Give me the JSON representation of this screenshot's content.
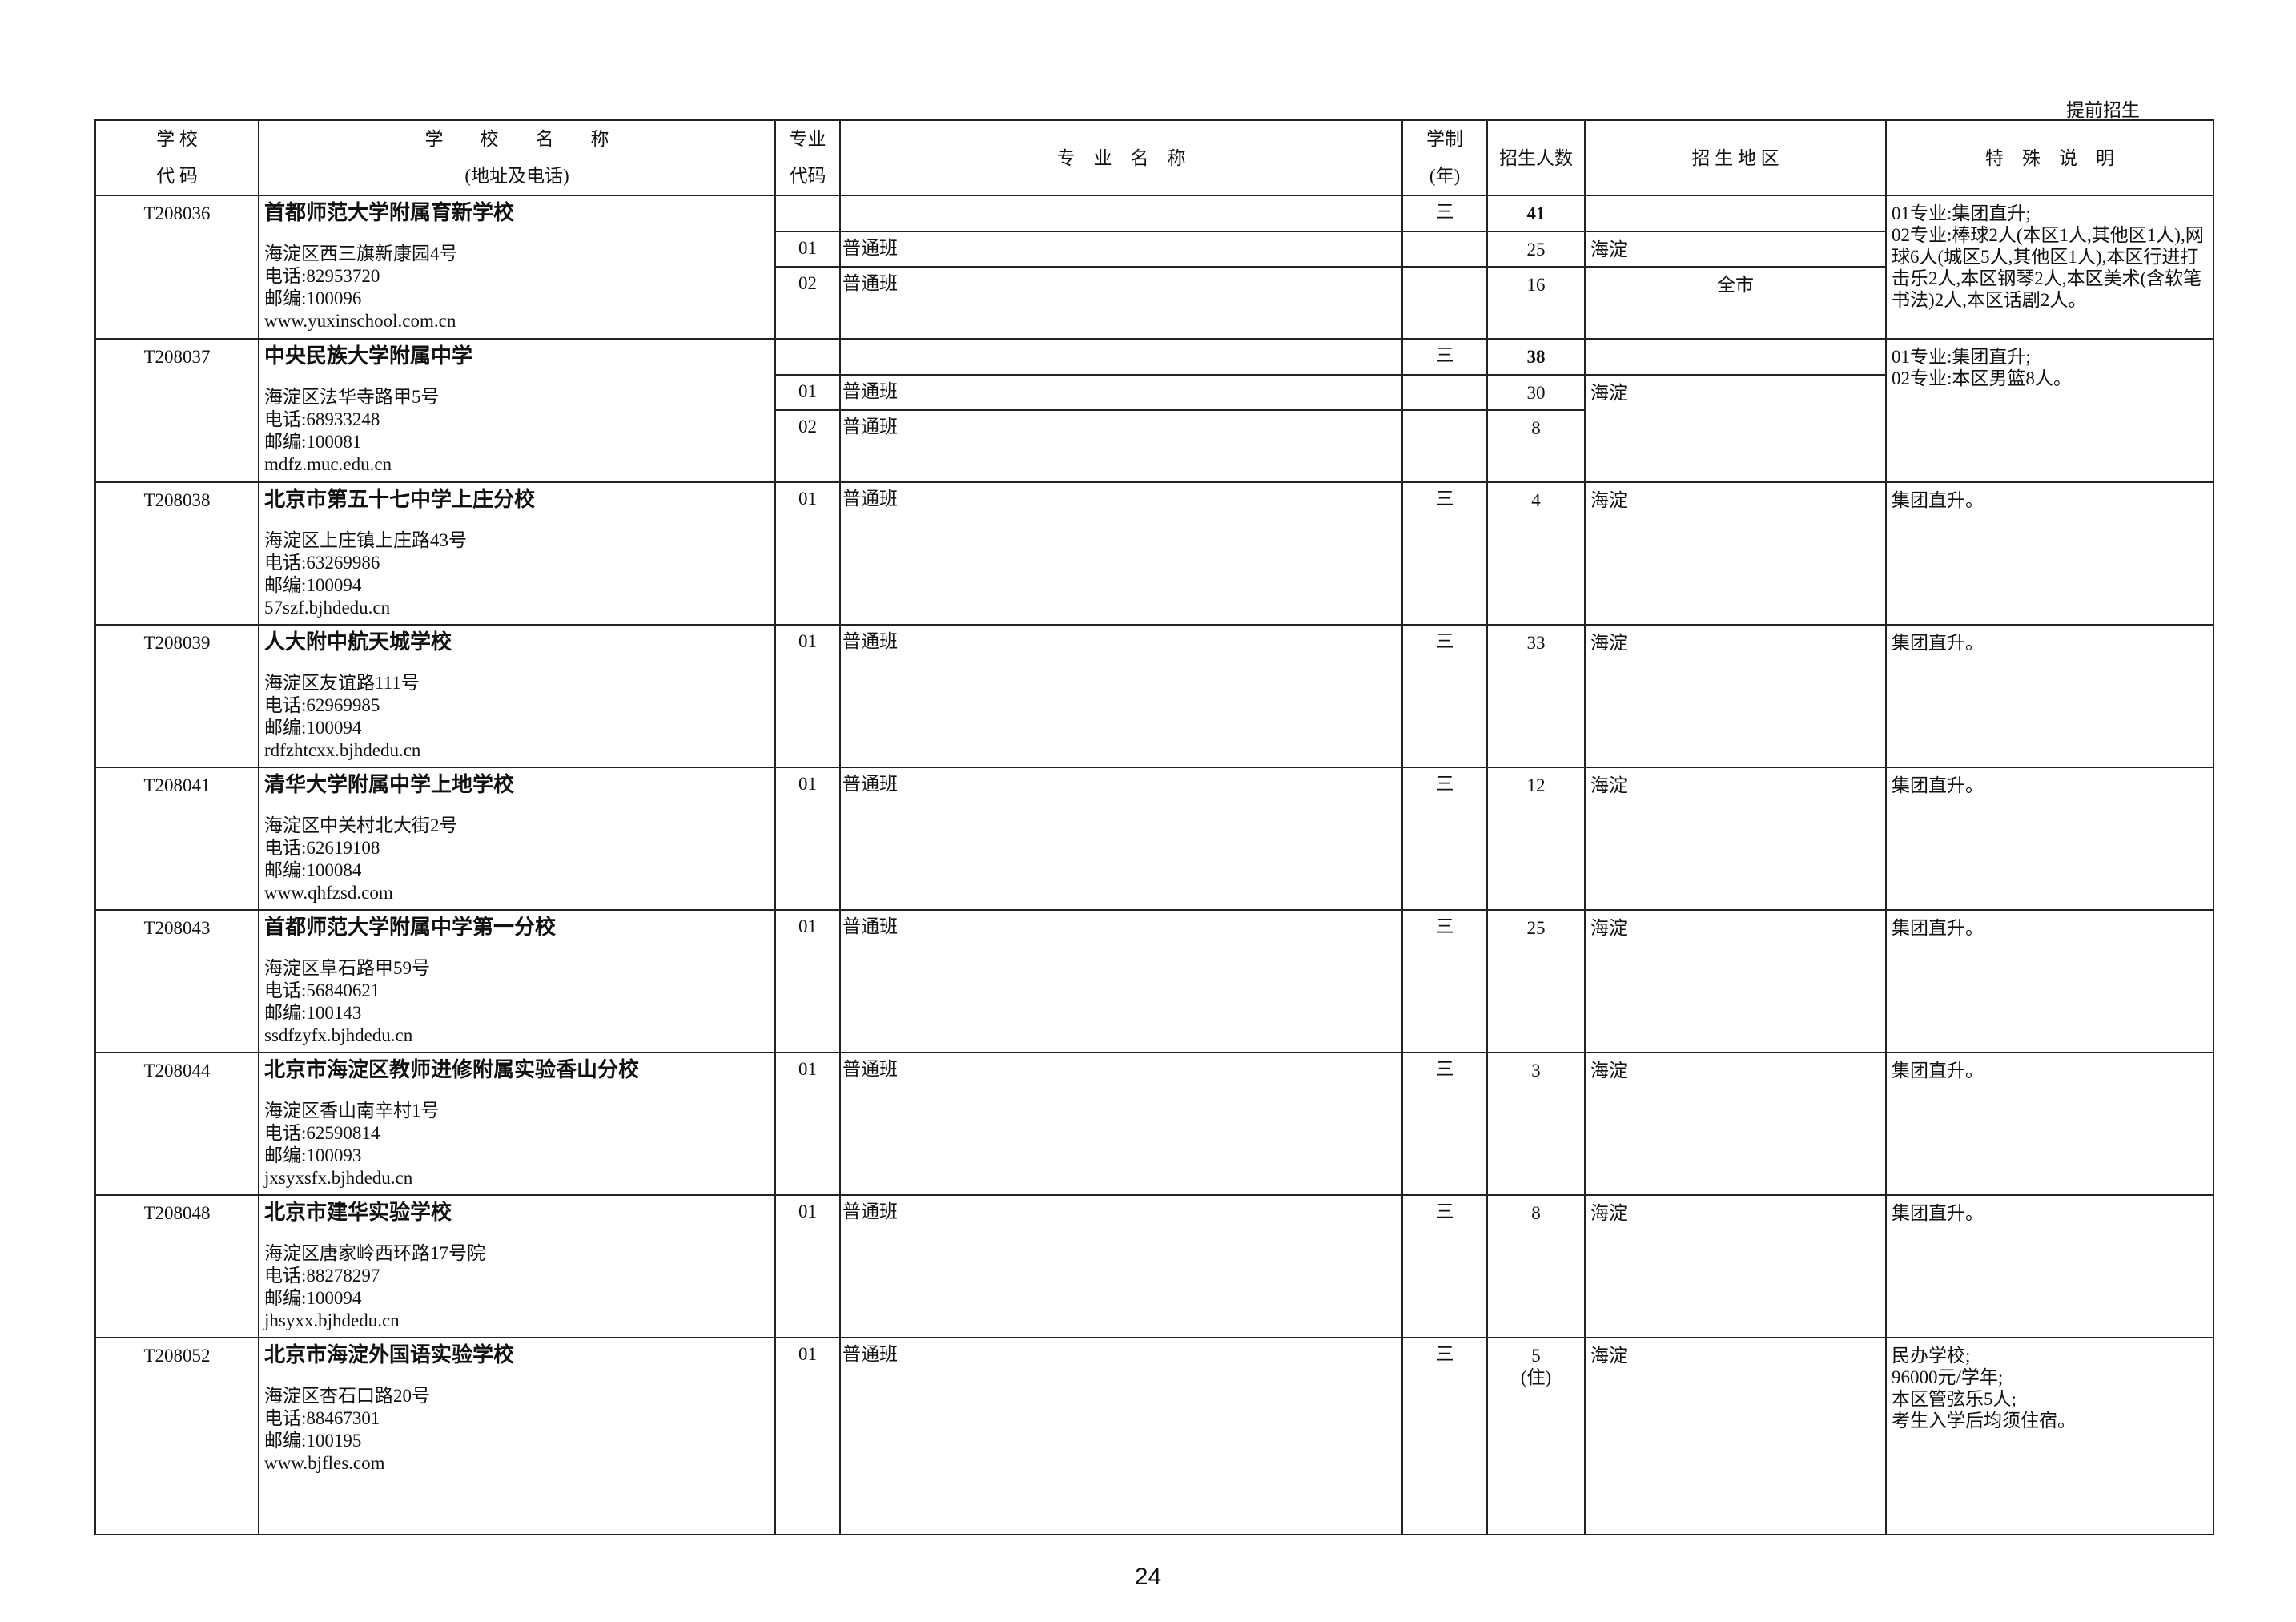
{
  "section_tag": "提前招生",
  "page_number": "24",
  "headers": {
    "school_code_1": "学 校",
    "school_code_2": "代 码",
    "school_name_1": "学　　校　　名　　称",
    "school_name_2": "(地址及电话)",
    "major_code_1": "专业",
    "major_code_2": "代码",
    "major_name": "专　业　名　称",
    "years_1": "学制",
    "years_2": "(年)",
    "enrollment": "招生人数",
    "region": "招 生 地 区",
    "notes": "特　殊　说　明"
  },
  "schools": [
    {
      "code": "T208036",
      "name": "首都师范大学附属育新学校",
      "address": "海淀区西三旗新康园4号",
      "phone": "电话:82953720",
      "postcode": "邮编:100096",
      "website": "www.yuxinschool.com.cn",
      "years": "三",
      "total": "41",
      "majors": [
        {
          "code": "01",
          "name": "普通班",
          "count": "25",
          "region": "海淀"
        },
        {
          "code": "02",
          "name": "普通班",
          "count": "16",
          "region": "全市"
        }
      ],
      "notes": "01专业:集团直升;\n02专业:棒球2人(本区1人,其他区1人),网球6人(城区5人,其他区1人),本区行进打击乐2人,本区钢琴2人,本区美术(含软笔书法)2人,本区话剧2人。"
    },
    {
      "code": "T208037",
      "name": "中央民族大学附属中学",
      "address": "海淀区法华寺路甲5号",
      "phone": "电话:68933248",
      "postcode": "邮编:100081",
      "website": "mdfz.muc.edu.cn",
      "years": "三",
      "total": "38",
      "majors": [
        {
          "code": "01",
          "name": "普通班",
          "count": "30",
          "region": "海淀"
        },
        {
          "code": "02",
          "name": "普通班",
          "count": "8"
        }
      ],
      "notes": "01专业:集团直升;\n02专业:本区男篮8人。"
    },
    {
      "code": "T208038",
      "name": "北京市第五十七中学上庄分校",
      "address": "海淀区上庄镇上庄路43号",
      "phone": "电话:63269986",
      "postcode": "邮编:100094",
      "website": "57szf.bjhdedu.cn",
      "major_code": "01",
      "major_name": "普通班",
      "years": "三",
      "count": "4",
      "region": "海淀",
      "notes": "集团直升。"
    },
    {
      "code": "T208039",
      "name": "人大附中航天城学校",
      "address": "海淀区友谊路111号",
      "phone": "电话:62969985",
      "postcode": "邮编:100094",
      "website": "rdfzhtcxx.bjhdedu.cn",
      "major_code": "01",
      "major_name": "普通班",
      "years": "三",
      "count": "33",
      "region": "海淀",
      "notes": "集团直升。"
    },
    {
      "code": "T208041",
      "name": "清华大学附属中学上地学校",
      "address": "海淀区中关村北大街2号",
      "phone": "电话:62619108",
      "postcode": "邮编:100084",
      "website": "www.qhfzsd.com",
      "major_code": "01",
      "major_name": "普通班",
      "years": "三",
      "count": "12",
      "region": "海淀",
      "notes": "集团直升。"
    },
    {
      "code": "T208043",
      "name": "首都师范大学附属中学第一分校",
      "address": "海淀区阜石路甲59号",
      "phone": "电话:56840621",
      "postcode": "邮编:100143",
      "website": "ssdfzyfx.bjhdedu.cn",
      "major_code": "01",
      "major_name": "普通班",
      "years": "三",
      "count": "25",
      "region": "海淀",
      "notes": "集团直升。"
    },
    {
      "code": "T208044",
      "name": "北京市海淀区教师进修附属实验香山分校",
      "address": "海淀区香山南辛村1号",
      "phone": "电话:62590814",
      "postcode": "邮编:100093",
      "website": "jxsyxsfx.bjhdedu.cn",
      "major_code": "01",
      "major_name": "普通班",
      "years": "三",
      "count": "3",
      "region": "海淀",
      "notes": "集团直升。"
    },
    {
      "code": "T208048",
      "name": "北京市建华实验学校",
      "address": "海淀区唐家岭西环路17号院",
      "phone": "电话:88278297",
      "postcode": "邮编:100094",
      "website": "jhsyxx.bjhdedu.cn",
      "major_code": "01",
      "major_name": "普通班",
      "years": "三",
      "count": "8",
      "region": "海淀",
      "notes": "集团直升。"
    },
    {
      "code": "T208052",
      "name": "北京市海淀外国语实验学校",
      "address": "海淀区杏石口路20号",
      "phone": "电话:88467301",
      "postcode": "邮编:100195",
      "website": "www.bjfles.com",
      "major_code": "01",
      "major_name": "普通班",
      "years": "三",
      "count": "5",
      "count_note": "(住)",
      "region": "海淀",
      "notes": "民办学校;\n96000元/学年;\n本区管弦乐5人;\n考生入学后均须住宿。"
    }
  ]
}
